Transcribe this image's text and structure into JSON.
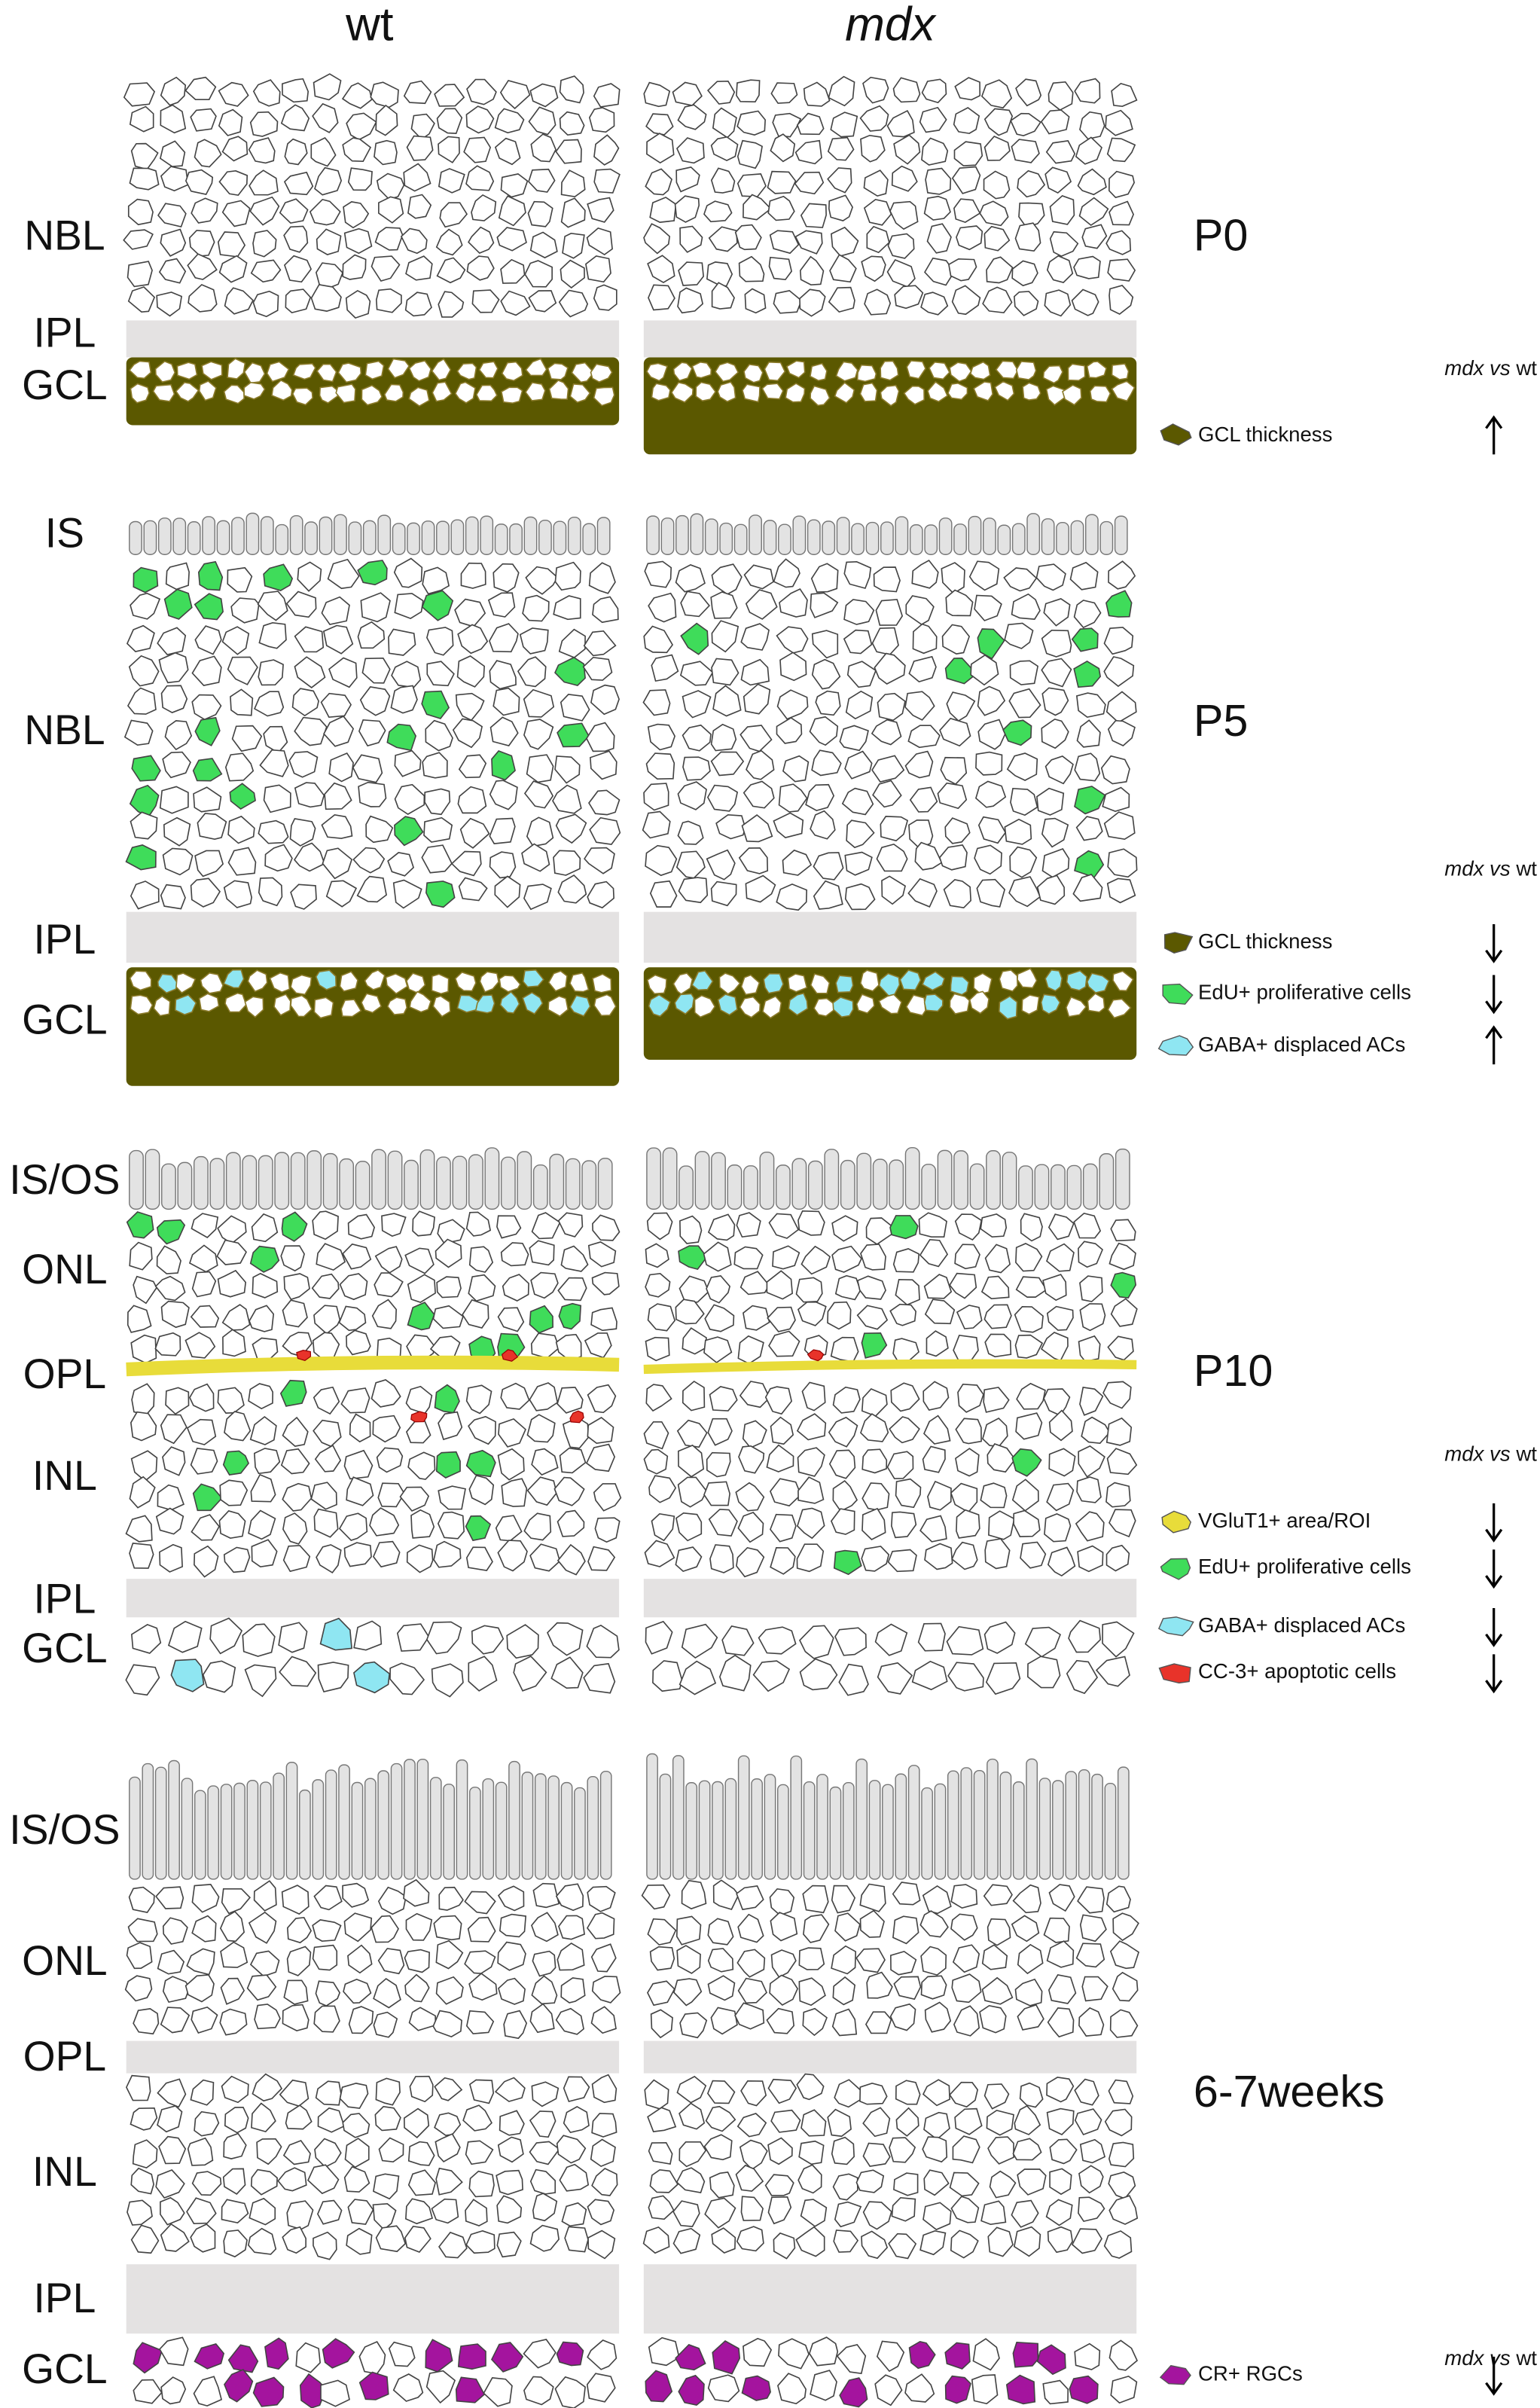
{
  "columns": [
    "wt",
    "mdx"
  ],
  "panels": [
    {
      "stage": "P0",
      "layers": [
        "NBL",
        "IPL",
        "GCL"
      ],
      "comparison_label": {
        "italic": "mdx vs",
        "normal": "wt"
      },
      "legend": [
        {
          "label": "GCL thickness",
          "color": "#5b5800",
          "change": "up"
        }
      ]
    },
    {
      "stage": "P5",
      "layers": [
        "IS",
        "NBL",
        "IPL",
        "GCL"
      ],
      "comparison_label": {
        "italic": "mdx vs",
        "normal": "wt"
      },
      "legend": [
        {
          "label": "GCL thickness",
          "color": "#5b5800",
          "change": "down"
        },
        {
          "label": "EdU+ proliferative cells",
          "color": "#3fdc5a",
          "change": "down"
        },
        {
          "label": "GABA+ displaced ACs",
          "color": "#8fe6f2",
          "change": "up"
        }
      ]
    },
    {
      "stage": "P10",
      "layers": [
        "IS/OS",
        "ONL",
        "OPL",
        "INL",
        "IPL",
        "GCL"
      ],
      "comparison_label": {
        "italic": "mdx vs",
        "normal": "wt"
      },
      "legend": [
        {
          "label": "VGluT1+ area/ROI",
          "color": "#e8dc3a",
          "change": "down"
        },
        {
          "label": "EdU+ proliferative cells",
          "color": "#3fdc5a",
          "change": "down"
        },
        {
          "label": "GABA+ displaced ACs",
          "color": "#8fe6f2",
          "change": "down"
        },
        {
          "label": "CC-3+ apoptotic cells",
          "color": "#e8332a",
          "change": "down"
        }
      ]
    },
    {
      "stage": "6-7weeks",
      "layers": [
        "IS/OS",
        "ONL",
        "OPL",
        "INL",
        "IPL",
        "GCL"
      ],
      "comparison_label": {
        "italic": "mdx vs",
        "normal": "wt"
      },
      "legend": [
        {
          "label": "CR+ RGCs",
          "color": "#a4149e",
          "change": "down"
        }
      ]
    }
  ]
}
